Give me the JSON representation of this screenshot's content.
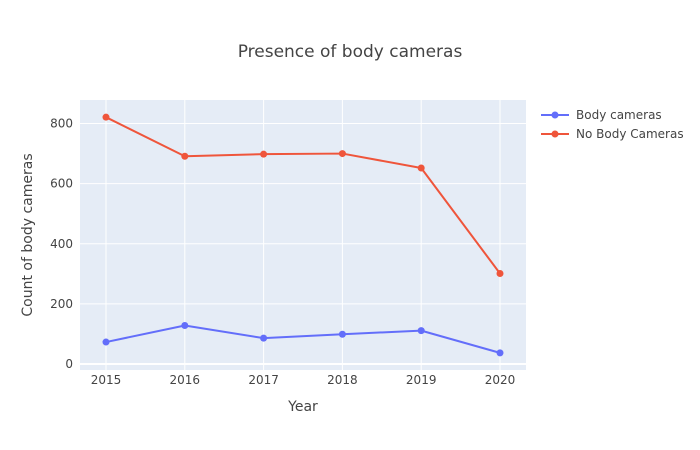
{
  "chart_data": {
    "type": "line",
    "title": "Presence of body cameras",
    "xlabel": "Year",
    "ylabel": "Count of body cameras",
    "x": [
      2015,
      2016,
      2017,
      2018,
      2019,
      2020
    ],
    "ylim": [
      0,
      880
    ],
    "yticks": [
      0,
      200,
      400,
      600,
      800
    ],
    "grid": true,
    "legend_position": "top-right",
    "series": [
      {
        "name": "Body cameras",
        "color": "#636efa",
        "values": [
          73,
          128,
          86,
          99,
          111,
          37
        ]
      },
      {
        "name": "No Body Cameras",
        "color": "#ef553b",
        "values": [
          821,
          691,
          698,
          700,
          652,
          301
        ]
      }
    ]
  },
  "colors": {
    "plot_background": "#e5ecf6",
    "grid": "#ffffff",
    "text": "#444444"
  }
}
